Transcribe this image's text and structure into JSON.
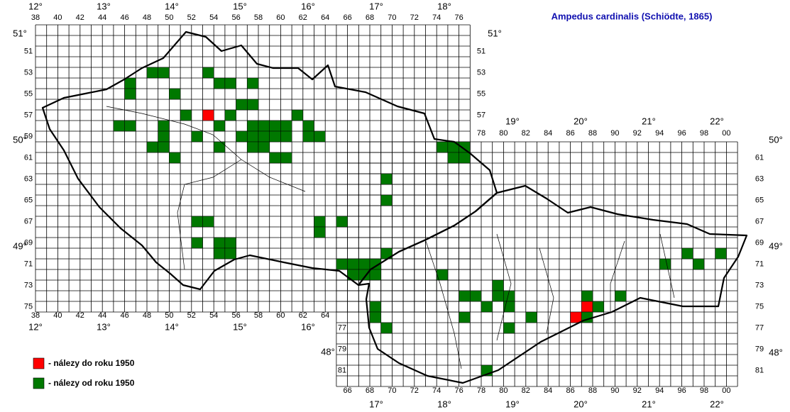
{
  "title": "Ampedus cardinalis (Schiödte, 1865)",
  "legend": {
    "before": "- nálezy do roku 1950",
    "after": "- nálezy od roku 1950"
  },
  "grid": {
    "cz_cols": [
      "38",
      "40",
      "42",
      "44",
      "46",
      "48",
      "50",
      "52",
      "54",
      "56",
      "58",
      "60",
      "62",
      "64",
      "66",
      "68",
      "70",
      "72",
      "74",
      "76"
    ],
    "cz_cols_bottom": [
      "38",
      "40",
      "42",
      "44",
      "46",
      "48",
      "50",
      "52",
      "54",
      "56",
      "58",
      "60",
      "62",
      "64"
    ],
    "sk_cols_top": [
      "78",
      "80",
      "82",
      "84",
      "86",
      "88",
      "90",
      "92",
      "94",
      "96",
      "98",
      "00"
    ],
    "sk_cols_bottom": [
      "66",
      "68",
      "70",
      "72",
      "74",
      "76",
      "78",
      "80",
      "82",
      "84",
      "86",
      "88",
      "90",
      "92",
      "94",
      "96",
      "98",
      "00"
    ],
    "cz_rows_left": [
      "51",
      "53",
      "55",
      "57",
      "59",
      "61",
      "63",
      "65",
      "67",
      "69",
      "71",
      "73",
      "75"
    ],
    "cz_rows_right": [
      "51",
      "53",
      "55",
      "57"
    ],
    "sk_rows_right": [
      "61",
      "63",
      "65",
      "67",
      "69",
      "71",
      "73",
      "75",
      "77",
      "79",
      "81"
    ],
    "sk_rows_left": [
      "77",
      "79",
      "81"
    ]
  },
  "degrees": {
    "lon_top_cz": [
      "12°",
      "13°",
      "14°",
      "15°",
      "16°",
      "17°",
      "18°"
    ],
    "lon_top_sk": [
      "19°",
      "20°",
      "21°",
      "22°"
    ],
    "lon_bottom_cz": [
      "12°",
      "13°",
      "14°",
      "15°",
      "16°"
    ],
    "lon_bottom_sk": [
      "17°",
      "18°",
      "19°",
      "20°",
      "21°",
      "22°"
    ],
    "lat_left": [
      "51°",
      "50°",
      "49°"
    ],
    "lat_right": [
      "51°",
      "50°",
      "49°",
      "48°"
    ],
    "lat_left_sk": [
      "48°"
    ]
  },
  "records": {
    "red": [
      [
        53,
        57
      ],
      [
        87,
        75
      ],
      [
        86,
        76
      ]
    ],
    "green": [
      [
        48,
        53
      ],
      [
        49,
        53
      ],
      [
        53,
        53
      ],
      [
        46,
        54
      ],
      [
        54,
        54
      ],
      [
        55,
        54
      ],
      [
        57,
        54
      ],
      [
        46,
        55
      ],
      [
        50,
        55
      ],
      [
        56,
        56
      ],
      [
        57,
        56
      ],
      [
        51,
        57
      ],
      [
        55,
        57
      ],
      [
        61,
        57
      ],
      [
        45,
        58
      ],
      [
        46,
        58
      ],
      [
        49,
        58
      ],
      [
        54,
        58
      ],
      [
        57,
        58
      ],
      [
        58,
        58
      ],
      [
        59,
        58
      ],
      [
        60,
        58
      ],
      [
        62,
        58
      ],
      [
        49,
        59
      ],
      [
        52,
        59
      ],
      [
        56,
        59
      ],
      [
        57,
        59
      ],
      [
        58,
        59
      ],
      [
        59,
        59
      ],
      [
        60,
        59
      ],
      [
        62,
        59
      ],
      [
        63,
        59
      ],
      [
        48,
        60
      ],
      [
        49,
        60
      ],
      [
        54,
        60
      ],
      [
        57,
        60
      ],
      [
        58,
        60
      ],
      [
        74,
        60
      ],
      [
        75,
        60
      ],
      [
        76,
        60
      ],
      [
        50,
        61
      ],
      [
        59,
        61
      ],
      [
        60,
        61
      ],
      [
        75,
        61
      ],
      [
        76,
        61
      ],
      [
        69,
        63
      ],
      [
        69,
        65
      ],
      [
        52,
        67
      ],
      [
        53,
        67
      ],
      [
        63,
        67
      ],
      [
        65,
        67
      ],
      [
        63,
        68
      ],
      [
        52,
        69
      ],
      [
        54,
        69
      ],
      [
        55,
        69
      ],
      [
        54,
        70
      ],
      [
        55,
        70
      ],
      [
        69,
        70
      ],
      [
        96,
        70
      ],
      [
        99,
        70
      ],
      [
        65,
        71
      ],
      [
        66,
        71
      ],
      [
        67,
        71
      ],
      [
        68,
        71
      ],
      [
        94,
        71
      ],
      [
        97,
        71
      ],
      [
        66,
        72
      ],
      [
        67,
        72
      ],
      [
        68,
        72
      ],
      [
        74,
        72
      ],
      [
        79,
        73
      ],
      [
        76,
        74
      ],
      [
        77,
        74
      ],
      [
        79,
        74
      ],
      [
        80,
        74
      ],
      [
        87,
        74
      ],
      [
        90,
        74
      ],
      [
        68,
        75
      ],
      [
        78,
        75
      ],
      [
        80,
        75
      ],
      [
        88,
        75
      ],
      [
        68,
        76
      ],
      [
        76,
        76
      ],
      [
        82,
        76
      ],
      [
        87,
        76
      ],
      [
        69,
        77
      ],
      [
        80,
        77
      ],
      [
        78,
        81
      ]
    ]
  }
}
